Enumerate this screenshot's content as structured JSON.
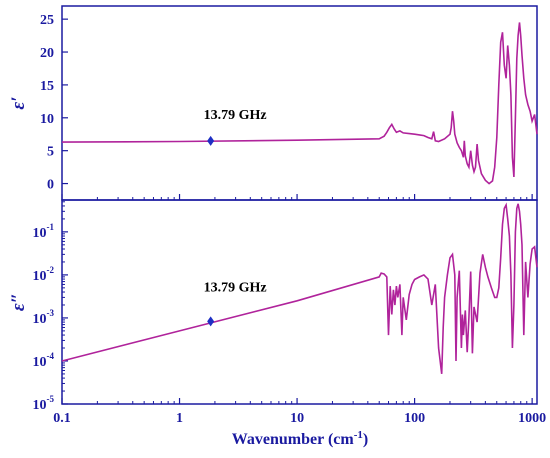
{
  "chart_data": [
    {
      "type": "line",
      "panel": "top",
      "ylabel": "ε′",
      "xscale": "log",
      "xlim": [
        0.1,
        1100
      ],
      "ylim": [
        -2.5,
        27
      ],
      "yticks": [
        0,
        5,
        10,
        15,
        20,
        25
      ],
      "grid": false,
      "colors": {
        "line": "#b0239b",
        "marker": "#1f2fc4"
      },
      "annotation": {
        "text": "13.79 GHz",
        "x": 1.84,
        "y": 6.5
      },
      "series": [
        {
          "x": [
            0.1,
            1,
            10,
            50,
            55,
            58,
            61,
            64,
            67,
            70,
            75,
            80,
            90,
            100,
            110,
            120,
            130,
            140,
            145,
            150,
            160,
            180,
            200,
            205,
            210,
            215,
            220,
            230,
            240,
            250,
            260,
            265,
            270,
            280,
            290,
            300,
            310,
            320,
            330,
            340,
            350,
            370,
            400,
            430,
            460,
            480,
            500,
            520,
            540,
            560,
            580,
            600,
            620,
            640,
            660,
            680,
            700,
            720,
            740,
            760,
            780,
            800,
            820,
            850,
            880,
            920,
            960,
            1000,
            1050,
            1100
          ],
          "y": [
            6.3,
            6.4,
            6.6,
            6.8,
            7.2,
            7.8,
            8.5,
            9.0,
            8.3,
            7.8,
            8.0,
            7.7,
            7.6,
            7.5,
            7.4,
            7.3,
            7.0,
            6.8,
            7.9,
            6.5,
            6.4,
            6.8,
            7.5,
            8.5,
            11.0,
            9.5,
            7.5,
            6.2,
            5.5,
            5.0,
            4.0,
            6.5,
            4.2,
            3.0,
            2.5,
            5.0,
            2.8,
            1.8,
            2.5,
            6.0,
            3.5,
            1.5,
            0.5,
            0.0,
            0.4,
            2.5,
            7.0,
            15.0,
            21.5,
            23.0,
            18.0,
            16.0,
            21.0,
            18.0,
            13.5,
            4.0,
            1.0,
            10.0,
            19.0,
            22.5,
            24.5,
            22.5,
            19.5,
            16.0,
            13.5,
            12.0,
            11.0,
            9.5,
            10.5,
            7.5
          ]
        }
      ]
    },
    {
      "type": "line",
      "panel": "bottom",
      "xlabel": "Wavenumber (cm-1)",
      "ylabel": "ε″",
      "xscale": "log",
      "yscale": "log",
      "xlim": [
        0.1,
        1100
      ],
      "ylim": [
        1e-05,
        0.55
      ],
      "xticks": [
        0.1,
        1,
        10,
        100,
        1000
      ],
      "xtick_labels": [
        "0.1",
        "1",
        "10",
        "100",
        "1000"
      ],
      "yticks": [
        1e-05,
        0.0001,
        0.001,
        0.01,
        0.1
      ],
      "ytick_labels": [
        "10-5",
        "10-4",
        "10-3",
        "10-2",
        "10-1"
      ],
      "grid": false,
      "colors": {
        "line": "#b0239b",
        "marker": "#1f2fc4"
      },
      "annotation": {
        "text": "13.79 GHz",
        "x": 1.84,
        "y": 0.00083
      },
      "series": [
        {
          "x": [
            0.1,
            1,
            10,
            50,
            52,
            55,
            58,
            60,
            62,
            64,
            66,
            68,
            70,
            72,
            75,
            78,
            80,
            85,
            90,
            95,
            100,
            110,
            120,
            130,
            140,
            150,
            160,
            170,
            175,
            180,
            190,
            200,
            210,
            220,
            225,
            230,
            240,
            250,
            255,
            260,
            270,
            280,
            290,
            300,
            310,
            320,
            340,
            360,
            380,
            400,
            420,
            450,
            480,
            500,
            520,
            540,
            560,
            580,
            600,
            620,
            640,
            660,
            680,
            700,
            720,
            740,
            760,
            780,
            800,
            820,
            850,
            880,
            920,
            960,
            1000,
            1050,
            1100
          ],
          "y": [
            0.0001,
            0.0005,
            0.0025,
            0.009,
            0.011,
            0.0105,
            0.009,
            0.0004,
            0.0055,
            0.0012,
            0.0045,
            0.002,
            0.0055,
            0.003,
            0.006,
            0.0004,
            0.003,
            0.0009,
            0.0035,
            0.006,
            0.0078,
            0.009,
            0.01,
            0.008,
            0.002,
            0.006,
            0.0002,
            5e-05,
            0.0006,
            0.003,
            0.01,
            0.025,
            0.03,
            0.01,
            0.0001,
            0.003,
            0.0125,
            0.0002,
            0.0012,
            0.0004,
            0.0015,
            0.00016,
            0.001,
            0.012,
            0.00015,
            0.0018,
            0.0008,
            0.011,
            0.03,
            0.015,
            0.009,
            0.005,
            0.003,
            0.003,
            0.005,
            0.025,
            0.15,
            0.35,
            0.42,
            0.2,
            0.08,
            0.01,
            0.0002,
            0.002,
            0.1,
            0.35,
            0.45,
            0.3,
            0.15,
            0.05,
            0.0004,
            0.02,
            0.003,
            0.018,
            0.04,
            0.045,
            0.015
          ]
        }
      ]
    }
  ]
}
